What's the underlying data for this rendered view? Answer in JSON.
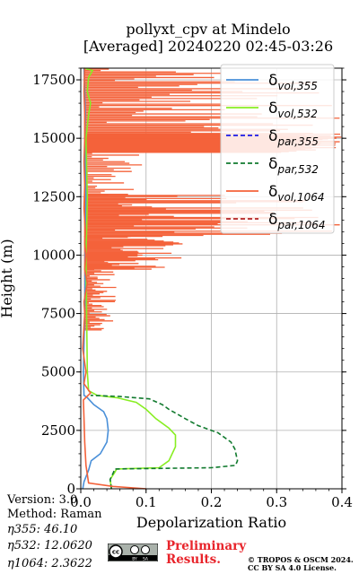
{
  "figure": {
    "title_line1": "pollyxt_cpv at Mindelo",
    "title_line2": "[Averaged] 20240220 02:45-03:26",
    "version_label": "Version: 3.0",
    "method_label": "Method: Raman",
    "eta355_label": "η355:  46.10",
    "eta532_label": "η532: 12.0620",
    "eta1064_label": "η1064: 2.3622",
    "preliminary_line1": "Preliminary",
    "preliminary_line2": "Results.",
    "copyright_line1": "© TROPOS & OSCM 2024.",
    "copyright_line2": "CC BY SA 4.0 License.",
    "cc_logo_text": "cc",
    "cc_by_text": "BY",
    "cc_sa_text": "SA"
  },
  "chart_data": {
    "type": "line",
    "xlabel": "Depolarization Ratio",
    "ylabel": "Height (m)",
    "xlim": [
      0,
      0.4
    ],
    "ylim": [
      0,
      18000
    ],
    "xticks": [
      0.0,
      0.1,
      0.2,
      0.3,
      0.4
    ],
    "xtick_labels": [
      "0.0",
      "0.1",
      "0.2",
      "0.3",
      "0.4"
    ],
    "yticks": [
      0,
      2500,
      5000,
      7500,
      10000,
      12500,
      15000,
      17500
    ],
    "ytick_labels": [
      "0",
      "2500",
      "5000",
      "7500",
      "10000",
      "12500",
      "15000",
      "17500"
    ],
    "grid": true,
    "legend_position": "top-right",
    "series": [
      {
        "name": "δvol,355",
        "legend_main": "δ",
        "legend_sub": "vol,355",
        "color": "#4a90d9",
        "dash": "solid",
        "points": [
          [
            0.003,
            0
          ],
          [
            0.005,
            300
          ],
          [
            0.012,
            800
          ],
          [
            0.016,
            1200
          ],
          [
            0.03,
            1500
          ],
          [
            0.04,
            2000
          ],
          [
            0.042,
            2500
          ],
          [
            0.04,
            3000
          ],
          [
            0.035,
            3300
          ],
          [
            0.02,
            3600
          ],
          [
            0.01,
            3900
          ],
          [
            0.005,
            4000
          ],
          [
            0.004,
            5000
          ],
          [
            0.006,
            7500
          ],
          [
            0.007,
            10000
          ],
          [
            0.008,
            12500
          ],
          [
            0.006,
            15000
          ],
          [
            0.007,
            16000
          ],
          [
            0.006,
            17000
          ],
          [
            0.005,
            18000
          ]
        ]
      },
      {
        "name": "δvol,532",
        "legend_main": "δ",
        "legend_sub": "vol,532",
        "color": "#88ee22",
        "dash": "solid",
        "points": [
          [
            0.047,
            0
          ],
          [
            0.045,
            400
          ],
          [
            0.052,
            700
          ],
          [
            0.055,
            850
          ],
          [
            0.12,
            900
          ],
          [
            0.135,
            1200
          ],
          [
            0.145,
            1800
          ],
          [
            0.145,
            2300
          ],
          [
            0.135,
            2600
          ],
          [
            0.115,
            3000
          ],
          [
            0.1,
            3400
          ],
          [
            0.085,
            3700
          ],
          [
            0.055,
            3900
          ],
          [
            0.025,
            4000
          ],
          [
            0.012,
            4200
          ],
          [
            0.01,
            5000
          ],
          [
            0.009,
            7500
          ],
          [
            0.008,
            10000
          ],
          [
            0.009,
            11000
          ],
          [
            0.01,
            12500
          ],
          [
            0.008,
            15000
          ],
          [
            0.012,
            16000
          ],
          [
            0.015,
            16500
          ],
          [
            0.01,
            17000
          ],
          [
            0.012,
            17600
          ],
          [
            0.018,
            17900
          ],
          [
            0.005,
            18000
          ]
        ]
      },
      {
        "name": "δpar,355",
        "legend_main": "δ",
        "legend_sub": "par,355",
        "color": "#1a1ae6",
        "dash": "dashed",
        "points": []
      },
      {
        "name": "δpar,532",
        "legend_main": "δ",
        "legend_sub": "par,532",
        "color": "#117a2e",
        "dash": "dashed",
        "points": [
          [
            0.047,
            0
          ],
          [
            0.045,
            400
          ],
          [
            0.05,
            700
          ],
          [
            0.052,
            850
          ],
          [
            0.2,
            900
          ],
          [
            0.237,
            1000
          ],
          [
            0.24,
            1200
          ],
          [
            0.236,
            1700
          ],
          [
            0.23,
            2000
          ],
          [
            0.21,
            2400
          ],
          [
            0.18,
            2700
          ],
          [
            0.16,
            3000
          ],
          [
            0.135,
            3400
          ],
          [
            0.125,
            3600
          ],
          [
            0.105,
            3850
          ],
          [
            0.06,
            3950
          ],
          [
            0.015,
            4000
          ]
        ]
      },
      {
        "name": "δvol,1064",
        "legend_main": "δ",
        "legend_sub": "vol,1064",
        "color": "#f4623a",
        "dash": "solid",
        "points": [
          [
            0.1,
            0
          ],
          [
            0.05,
            100
          ],
          [
            0.012,
            250
          ],
          [
            0.008,
            1000
          ],
          [
            0.006,
            2000
          ],
          [
            0.005,
            3000
          ],
          [
            0.004,
            3800
          ],
          [
            0.015,
            4100
          ],
          [
            0.005,
            4500
          ],
          [
            0.008,
            5000
          ],
          [
            0.003,
            6000
          ],
          [
            0.005,
            7000
          ],
          [
            0.006,
            7500
          ],
          [
            0.005,
            8000
          ],
          [
            0.01,
            8800
          ],
          [
            0.006,
            9400
          ],
          [
            0.008,
            10000
          ],
          [
            0.006,
            10500
          ],
          [
            0.007,
            11000
          ],
          [
            0.005,
            12000
          ],
          [
            0.006,
            13000
          ],
          [
            0.005,
            14000
          ],
          [
            0.006,
            15000
          ],
          [
            0.006,
            16000
          ],
          [
            0.005,
            17000
          ],
          [
            0.006,
            18000
          ]
        ]
      },
      {
        "name": "δpar,1064",
        "legend_main": "δ",
        "legend_sub": "par,1064",
        "color": "#b22222",
        "dash": "dashed",
        "points": []
      }
    ]
  }
}
